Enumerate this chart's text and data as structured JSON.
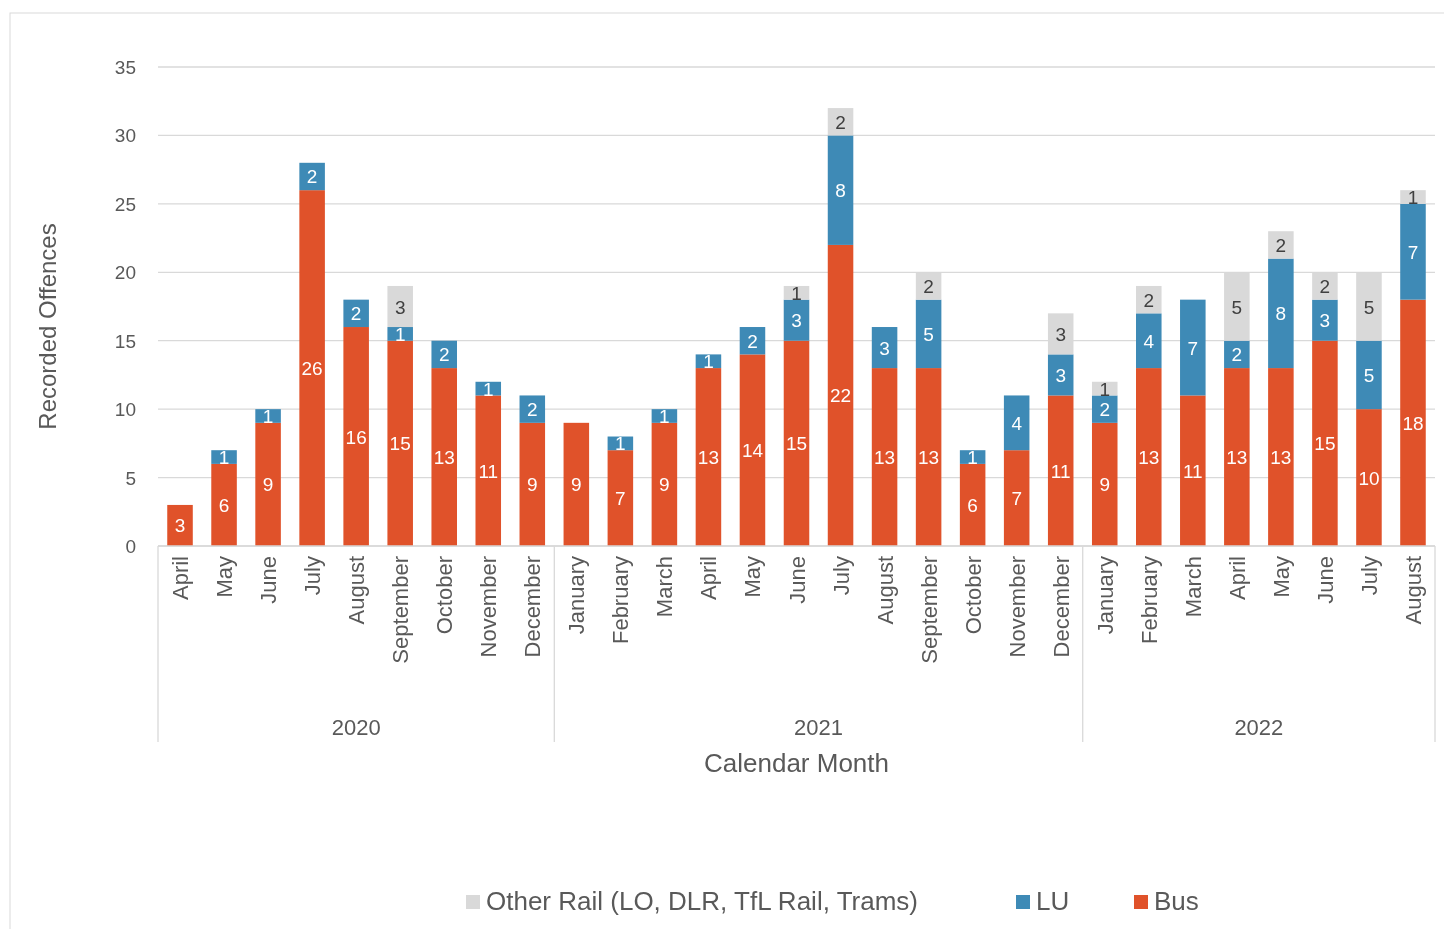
{
  "chart_data": {
    "type": "bar",
    "stacked": true,
    "xlabel": "Calendar Month",
    "ylabel": "Recorded Offences",
    "categories": [
      "April",
      "May",
      "June",
      "July",
      "August",
      "September",
      "October",
      "November",
      "December",
      "January",
      "February",
      "March",
      "April",
      "May",
      "June",
      "July",
      "August",
      "September",
      "October",
      "November",
      "December",
      "January",
      "February",
      "March",
      "April",
      "May",
      "June",
      "July",
      "August"
    ],
    "annotations": [
      "2020",
      "2021",
      "2022"
    ],
    "series": [
      {
        "name": "Bus",
        "color": "#e0522a",
        "values": [
          3,
          6,
          9,
          26,
          16,
          15,
          13,
          11,
          9,
          9,
          7,
          9,
          13,
          14,
          15,
          22,
          13,
          13,
          6,
          7,
          11,
          9,
          13,
          11,
          13,
          13,
          15,
          10,
          18
        ]
      },
      {
        "name": "LU",
        "color": "#3e8ab6",
        "values": [
          null,
          1,
          1,
          2,
          2,
          1,
          2,
          1,
          2,
          null,
          1,
          1,
          1,
          2,
          3,
          8,
          3,
          5,
          1,
          4,
          3,
          2,
          4,
          7,
          2,
          8,
          3,
          5,
          7
        ]
      },
      {
        "name": "Other Rail (LO, DLR, TfL Rail, Trams)",
        "color": "#d9d9d9",
        "values": [
          null,
          null,
          null,
          null,
          null,
          3,
          null,
          null,
          null,
          null,
          null,
          null,
          null,
          null,
          1,
          2,
          null,
          2,
          null,
          null,
          3,
          1,
          2,
          null,
          5,
          2,
          2,
          5,
          1
        ]
      }
    ],
    "ylim": [
      0,
      35
    ],
    "yticks": [
      0,
      5,
      10,
      15,
      20,
      25,
      30,
      35
    ],
    "grid": "y",
    "data_labels": true,
    "legend": "bottom"
  }
}
